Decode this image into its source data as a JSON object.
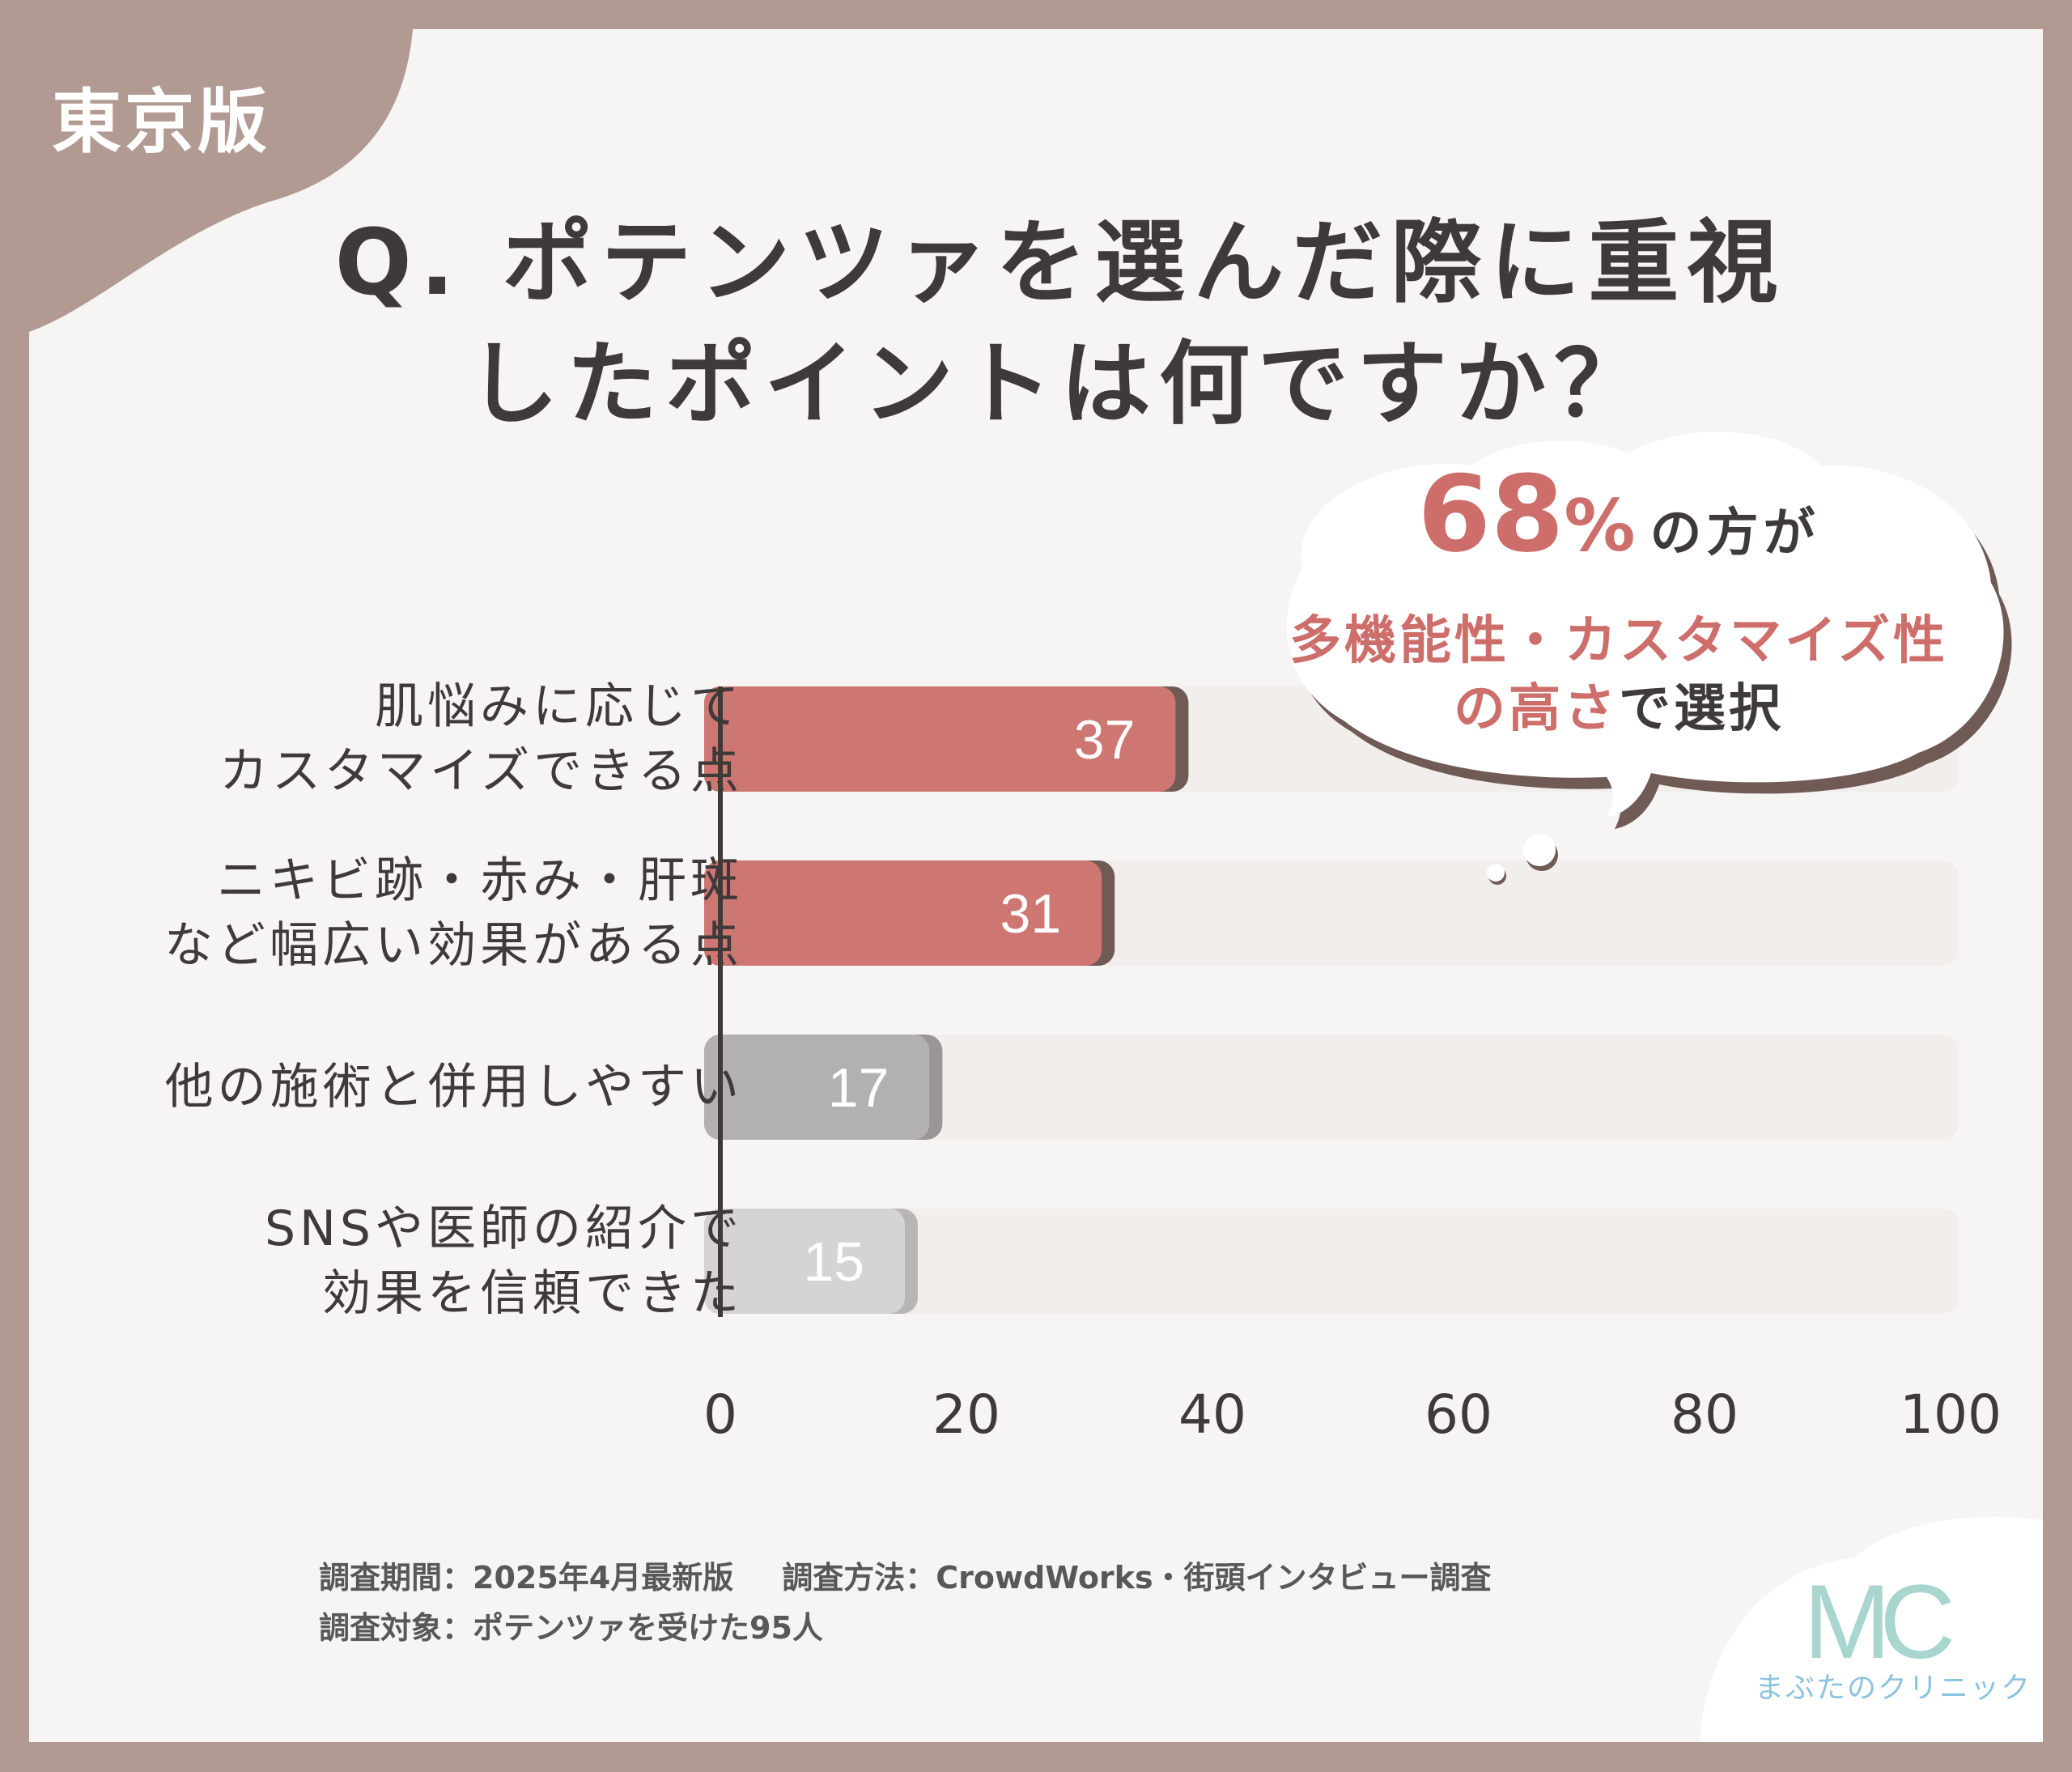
{
  "region_tag": "東京版",
  "title": {
    "line1": "Q. ポテンツァを選んだ際に重視",
    "line2": "したポイントは何ですか？"
  },
  "callout": {
    "percent": "68",
    "percent_sign": "%",
    "line1_suffix": "の方が",
    "line2": "多機能性・カスタマイズ性",
    "line3_accent": "の高さ",
    "line3_rest": "で選択"
  },
  "chart_data": {
    "type": "bar",
    "orientation": "horizontal",
    "categories": [
      [
        "肌悩みに応じて",
        "カスタマイズできる点"
      ],
      [
        "ニキビ跡・赤み・肝斑",
        "など幅広い効果がある点"
      ],
      [
        "他の施術と併用しやすい"
      ],
      [
        "SNSや医師の紹介で",
        "効果を信頼できた"
      ]
    ],
    "values": [
      37,
      31,
      17,
      15
    ],
    "value_labels": [
      "37",
      "31",
      "17",
      "15"
    ],
    "xlim": [
      0,
      100
    ],
    "x_ticks": [
      0,
      20,
      40,
      60,
      80,
      100
    ],
    "x_tick_labels": [
      "0",
      "20",
      "40",
      "60",
      "80",
      "100"
    ],
    "grid": false,
    "bar_colors": [
      "#cd7672",
      "#cd7672",
      "#b2b0b0",
      "#d5d3d3"
    ],
    "shadow_colors": [
      "#6f5a56",
      "#6f5a56",
      "#9a9696",
      "#b8b5b5"
    ],
    "track_color": "#f1eeec"
  },
  "footnote": {
    "period": "調査期間：2025年4月最新版",
    "method": "調査方法：CrowdWorks・街頭インタビュー調査",
    "target": "調査対象：ポテンツァを受けた95人"
  },
  "logo": {
    "mark": "MC",
    "name": "まぶたのクリニック"
  },
  "colors": {
    "frame": "#b19a92",
    "accent": "#cd6e6b",
    "text": "#3e3a39"
  }
}
